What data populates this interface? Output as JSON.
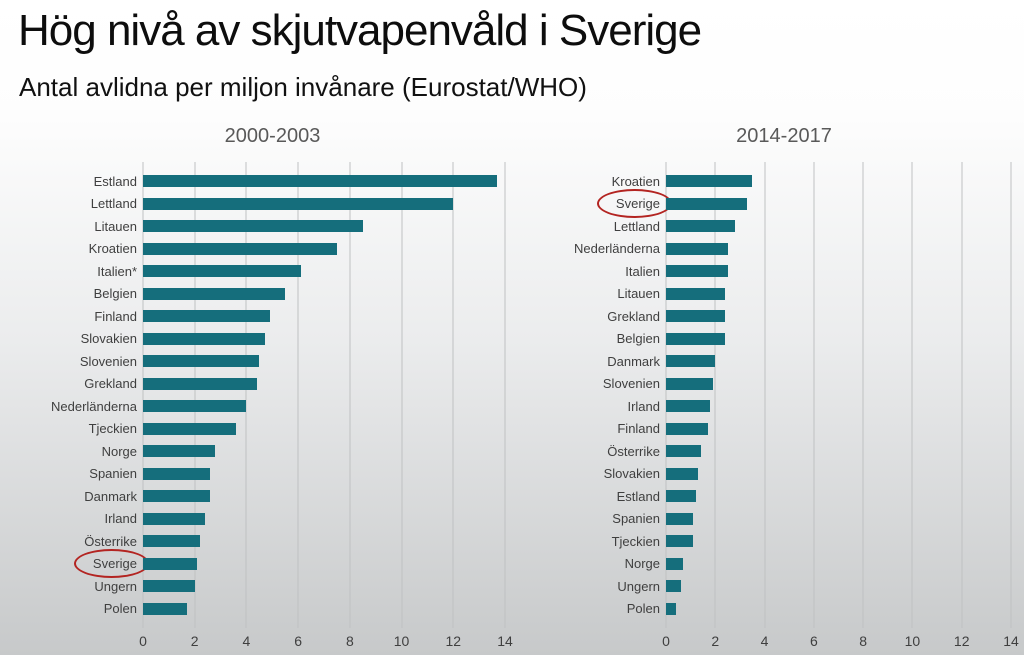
{
  "page": {
    "title": "Hög nivå av skjutvapenvåld i Sverige",
    "subtitle": "Antal avlidna per miljon invånare (Eurostat/WHO)"
  },
  "colors": {
    "bar": "#156e7c",
    "highlight_circle": "#b32421",
    "label_text": "#3f3f3f",
    "header_text": "#595959",
    "gridline": "#bfc1c2"
  },
  "chart_data": [
    {
      "type": "bar",
      "orientation": "horizontal",
      "title": "2000-2003",
      "xlabel": "",
      "ylabel": "",
      "xlim": [
        0,
        14
      ],
      "xticks": [
        0,
        2,
        4,
        6,
        8,
        10,
        12,
        14
      ],
      "grid": true,
      "highlighted_category": "Sverige",
      "categories": [
        "Estland",
        "Lettland",
        "Litauen",
        "Kroatien",
        "Italien*",
        "Belgien",
        "Finland",
        "Slovakien",
        "Slovenien",
        "Grekland",
        "Nederländerna",
        "Tjeckien",
        "Norge",
        "Spanien",
        "Danmark",
        "Irland",
        "Österrike",
        "Sverige",
        "Ungern",
        "Polen"
      ],
      "values": [
        13.7,
        12.0,
        8.5,
        7.5,
        6.1,
        5.5,
        4.9,
        4.7,
        4.5,
        4.4,
        4.0,
        3.6,
        2.8,
        2.6,
        2.6,
        2.4,
        2.2,
        2.1,
        2.0,
        1.7
      ]
    },
    {
      "type": "bar",
      "orientation": "horizontal",
      "title": "2014-2017",
      "xlabel": "",
      "ylabel": "",
      "xlim": [
        0,
        14
      ],
      "xticks": [
        0,
        2,
        4,
        6,
        8,
        10,
        12,
        14
      ],
      "grid": true,
      "highlighted_category": "Sverige",
      "categories": [
        "Kroatien",
        "Sverige",
        "Lettland",
        "Nederländerna",
        "Italien",
        "Litauen",
        "Grekland",
        "Belgien",
        "Danmark",
        "Slovenien",
        "Irland",
        "Finland",
        "Österrike",
        "Slovakien",
        "Estland",
        "Spanien",
        "Tjeckien",
        "Norge",
        "Ungern",
        "Polen"
      ],
      "values": [
        3.5,
        3.3,
        2.8,
        2.5,
        2.5,
        2.4,
        2.4,
        2.4,
        2.0,
        1.9,
        1.8,
        1.7,
        1.4,
        1.3,
        1.2,
        1.1,
        1.1,
        0.7,
        0.6,
        0.4
      ]
    }
  ]
}
